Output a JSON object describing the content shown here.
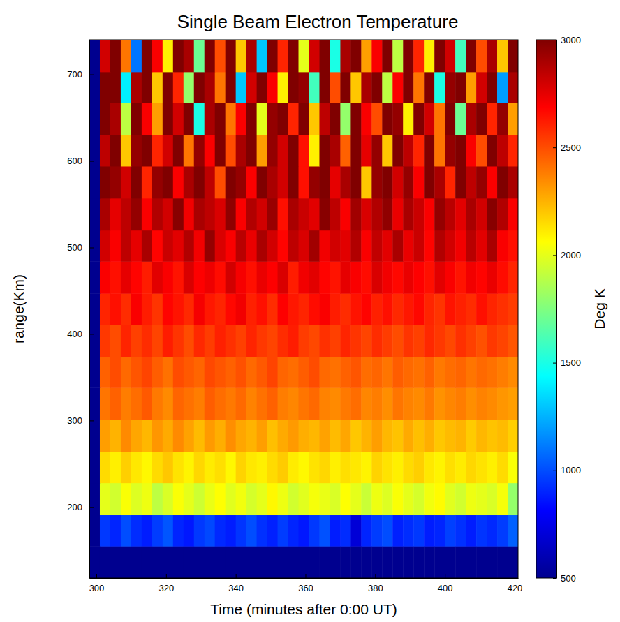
{
  "chart_data": {
    "type": "heatmap",
    "title": "Single Beam Electron Temperature",
    "x_label": "Time (minutes after 0:00 UT)",
    "y_label": "range(Km)",
    "x_bins": [
      298,
      301,
      304,
      307,
      310,
      313,
      316,
      319,
      322,
      325,
      328,
      331,
      334,
      337,
      340,
      343,
      346,
      349,
      352,
      355,
      358,
      361,
      364,
      367,
      370,
      373,
      376,
      379,
      382,
      385,
      388,
      391,
      394,
      397,
      400,
      403,
      406,
      409,
      412,
      415,
      418,
      421
    ],
    "y_bins": [
      118,
      155,
      191,
      228,
      264,
      301,
      338,
      374,
      411,
      447,
      484,
      520,
      557,
      594,
      630,
      667,
      703,
      740
    ],
    "values": [
      [
        500,
        500,
        500,
        500,
        500,
        500,
        500,
        500,
        500,
        500,
        500,
        500,
        500,
        500,
        500,
        500,
        500,
        500,
        500,
        500,
        500,
        500,
        500,
        500,
        500,
        500,
        500,
        500,
        500,
        500,
        500,
        500,
        500,
        500,
        500,
        500,
        500,
        500,
        500,
        500,
        500
      ],
      [
        500,
        950,
        900,
        1000,
        920,
        880,
        960,
        1020,
        900,
        870,
        950,
        990,
        910,
        880,
        940,
        1000,
        930,
        890,
        960,
        900,
        870,
        950,
        1010,
        880,
        920,
        700,
        900,
        960,
        1000,
        890,
        920,
        950,
        880,
        900,
        970,
        930,
        880,
        940,
        910,
        960,
        1050
      ],
      [
        500,
        2000,
        1950,
        2050,
        1980,
        2020,
        1900,
        1970,
        2050,
        2000,
        1940,
        2010,
        2060,
        1990,
        2030,
        1960,
        2000,
        2080,
        2020,
        1950,
        1990,
        2040,
        2010,
        1970,
        2060,
        2000,
        1930,
        2020,
        1980,
        2050,
        2000,
        1960,
        2030,
        2070,
        1990,
        1950,
        2020,
        2000,
        1970,
        2040,
        1800
      ],
      [
        500,
        2150,
        2100,
        2180,
        2120,
        2080,
        2150,
        2200,
        2130,
        2090,
        2160,
        2110,
        2140,
        2080,
        2170,
        2120,
        2100,
        2150,
        2190,
        2110,
        2080,
        2130,
        2160,
        2100,
        2140,
        2120,
        2090,
        2170,
        2130,
        2100,
        2150,
        2180,
        2120,
        2090,
        2140,
        2110,
        2160,
        2130,
        2100,
        2150,
        2050
      ],
      [
        500,
        2300,
        2250,
        2350,
        2280,
        2240,
        2320,
        2270,
        2350,
        2290,
        2230,
        2310,
        2260,
        2340,
        2280,
        2250,
        2300,
        2220,
        2270,
        2310,
        2260,
        2240,
        2290,
        2230,
        2280,
        2200,
        2250,
        2300,
        2240,
        2210,
        2270,
        2220,
        2260,
        2200,
        2230,
        2250,
        2190,
        2240,
        2210,
        2230,
        2180
      ],
      [
        500,
        2400,
        2450,
        2380,
        2420,
        2470,
        2390,
        2350,
        2440,
        2410,
        2380,
        2460,
        2420,
        2390,
        2430,
        2370,
        2410,
        2450,
        2380,
        2360,
        2400,
        2430,
        2370,
        2350,
        2390,
        2420,
        2360,
        2380,
        2340,
        2400,
        2370,
        2350,
        2390,
        2330,
        2360,
        2380,
        2340,
        2370,
        2350,
        2320,
        2300
      ],
      [
        500,
        2450,
        2500,
        2430,
        2480,
        2520,
        2460,
        2410,
        2500,
        2470,
        2440,
        2510,
        2480,
        2450,
        2490,
        2430,
        2470,
        2520,
        2440,
        2420,
        2460,
        2500,
        2430,
        2410,
        2450,
        2480,
        2420,
        2440,
        2400,
        2460,
        2430,
        2410,
        2450,
        2390,
        2420,
        2440,
        2400,
        2430,
        2410,
        2380,
        2350
      ],
      [
        500,
        2550,
        2500,
        2600,
        2530,
        2580,
        2520,
        2620,
        2560,
        2500,
        2590,
        2540,
        2610,
        2570,
        2530,
        2600,
        2550,
        2520,
        2580,
        2620,
        2540,
        2510,
        2570,
        2530,
        2600,
        2560,
        2520,
        2580,
        2540,
        2500,
        2560,
        2530,
        2590,
        2550,
        2510,
        2570,
        2530,
        2490,
        2550,
        2520,
        2480
      ],
      [
        500,
        2600,
        2650,
        2580,
        2700,
        2620,
        2560,
        2680,
        2640,
        2590,
        2710,
        2630,
        2600,
        2670,
        2720,
        2610,
        2650,
        2580,
        2690,
        2630,
        2600,
        2660,
        2700,
        2620,
        2580,
        2640,
        2680,
        2610,
        2650,
        2590,
        2630,
        2670,
        2600,
        2560,
        2640,
        2610,
        2580,
        2650,
        2600,
        2570,
        2540
      ],
      [
        500,
        2700,
        2650,
        2750,
        2680,
        2620,
        2760,
        2700,
        2640,
        2780,
        2690,
        2730,
        2660,
        2800,
        2710,
        2650,
        2740,
        2690,
        2780,
        2620,
        2720,
        2760,
        2680,
        2640,
        2750,
        2700,
        2660,
        2780,
        2720,
        2670,
        2740,
        2690,
        2650,
        2760,
        2700,
        2640,
        2720,
        2680,
        2740,
        2660,
        2600
      ],
      [
        500,
        2800,
        2700,
        2850,
        2750,
        2900,
        2680,
        2820,
        2760,
        2880,
        2720,
        2950,
        2780,
        2700,
        2860,
        2740,
        2900,
        2800,
        2680,
        2850,
        2780,
        2920,
        2720,
        2800,
        2760,
        2880,
        2700,
        2840,
        2760,
        2900,
        2740,
        2820,
        2680,
        2880,
        2800,
        2720,
        2860,
        2760,
        2900,
        2700,
        2650
      ],
      [
        500,
        2900,
        2750,
        2850,
        2950,
        2700,
        2880,
        2800,
        2980,
        2720,
        2900,
        2850,
        2780,
        2960,
        2700,
        2880,
        2800,
        2940,
        2650,
        2900,
        2820,
        2760,
        2980,
        2850,
        2700,
        2920,
        2780,
        2880,
        2960,
        2740,
        2900,
        2820,
        2700,
        2950,
        2860,
        2760,
        2900,
        2800,
        2980,
        2880,
        2700
      ],
      [
        500,
        3000,
        2950,
        2800,
        3000,
        2600,
        2950,
        3000,
        2700,
        2900,
        3000,
        2850,
        2500,
        3000,
        2950,
        2700,
        3000,
        2900,
        2800,
        3000,
        2650,
        2950,
        3000,
        2750,
        2900,
        3000,
        2200,
        2950,
        3000,
        2800,
        2950,
        2700,
        3000,
        2900,
        2600,
        3000,
        2850,
        2950,
        2700,
        3000,
        2900
      ],
      [
        500,
        2850,
        3000,
        2200,
        2950,
        3000,
        2600,
        2800,
        3000,
        2400,
        2950,
        2700,
        3000,
        2500,
        2900,
        3000,
        2300,
        2950,
        2800,
        3000,
        2650,
        2100,
        3000,
        2900,
        2450,
        3000,
        2750,
        2950,
        2200,
        3000,
        2850,
        2600,
        3000,
        2400,
        2950,
        3000,
        2700,
        2500,
        3000,
        2850,
        2600
      ],
      [
        500,
        3000,
        2900,
        1900,
        3000,
        2700,
        2300,
        3000,
        2800,
        3000,
        1500,
        2900,
        3000,
        2400,
        2700,
        3000,
        2000,
        2950,
        3000,
        2600,
        3000,
        2200,
        2850,
        3000,
        1800,
        3000,
        2700,
        2500,
        3000,
        2950,
        2100,
        3000,
        2800,
        2400,
        3000,
        1700,
        2900,
        3000,
        2600,
        2950,
        2300
      ],
      [
        500,
        3000,
        3000,
        1400,
        2900,
        3000,
        2200,
        3000,
        2600,
        1800,
        3000,
        2900,
        2400,
        3000,
        1300,
        2800,
        3000,
        2700,
        2100,
        3000,
        2950,
        1600,
        3000,
        2500,
        3000,
        2200,
        2900,
        3000,
        1900,
        2700,
        3000,
        2400,
        3000,
        1500,
        2950,
        3000,
        2300,
        2800,
        3000,
        1200,
        2900
      ],
      [
        500,
        2800,
        3000,
        2400,
        1100,
        3000,
        2700,
        2100,
        3000,
        2900,
        1700,
        3000,
        2500,
        3000,
        2200,
        2900,
        1300,
        3000,
        2600,
        3000,
        2000,
        2800,
        3000,
        1500,
        2900,
        3000,
        2300,
        2700,
        3000,
        1900,
        3000,
        2600,
        2100,
        3000,
        2800,
        1600,
        3000,
        2500,
        2900,
        2200,
        3000
      ]
    ],
    "xlim": [
      298,
      421
    ],
    "ylim": [
      118,
      740
    ],
    "xticks": [
      300,
      320,
      340,
      360,
      380,
      400,
      420
    ],
    "yticks": [
      200,
      300,
      400,
      500,
      600,
      700
    ],
    "colorbar": {
      "label": "Deg K",
      "range": [
        500,
        3000
      ],
      "ticks": [
        500,
        1000,
        1500,
        2000,
        2500,
        3000
      ]
    }
  }
}
